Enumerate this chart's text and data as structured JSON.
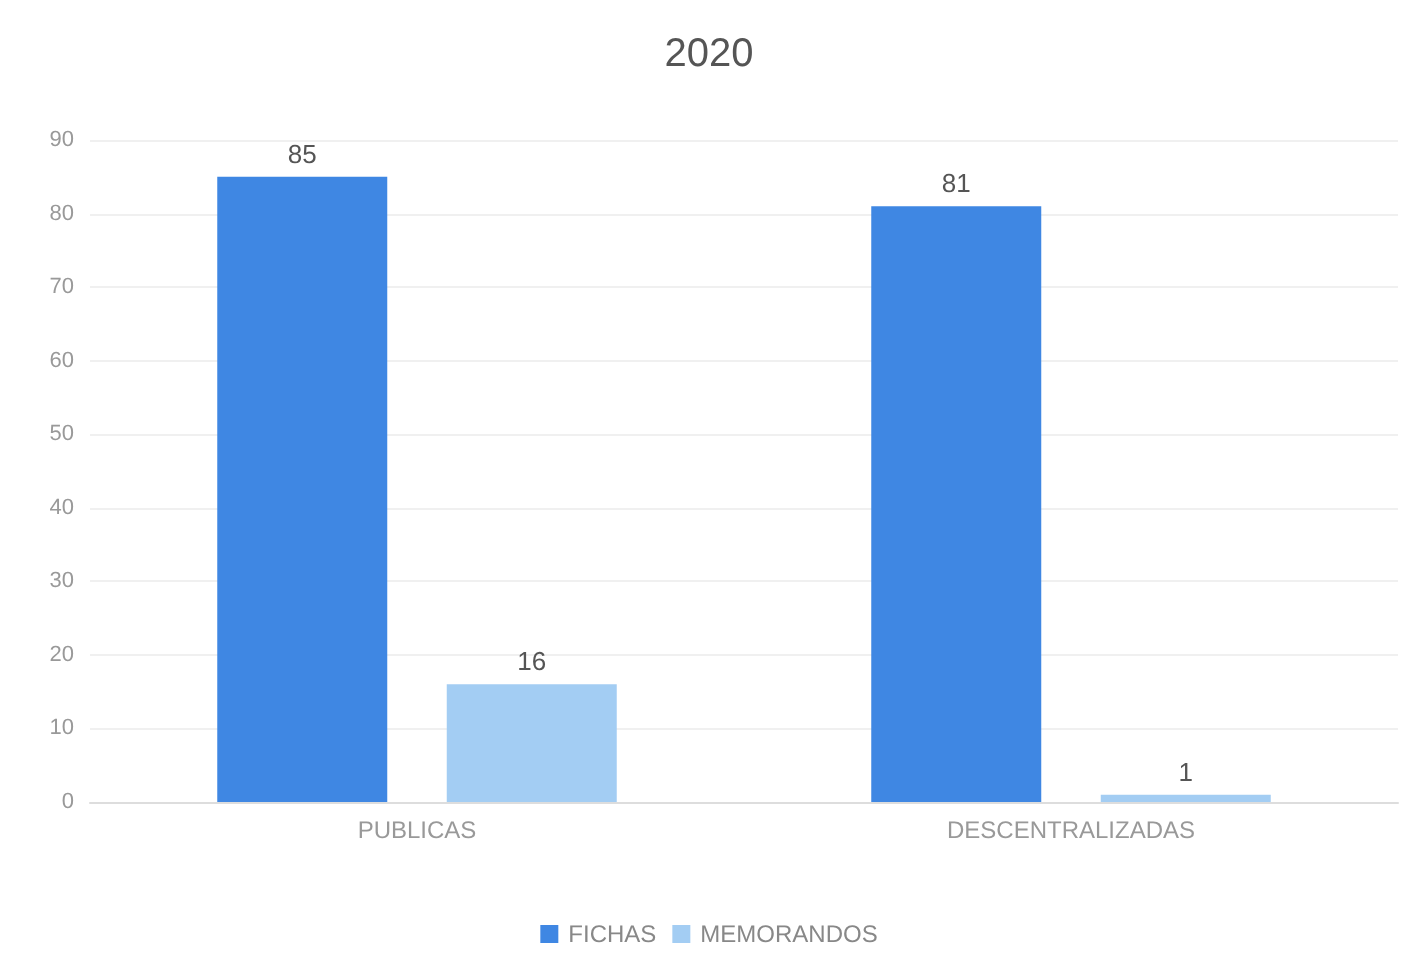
{
  "chart_data": {
    "type": "bar",
    "title": "2020",
    "categories": [
      "PUBLICAS",
      "DESCENTRALIZADAS"
    ],
    "series": [
      {
        "name": "FICHAS",
        "color": "#3f87e3",
        "values": [
          85,
          81
        ]
      },
      {
        "name": "MEMORANDOS",
        "color": "#a3cdf3",
        "values": [
          16,
          1
        ]
      }
    ],
    "ylim": [
      0,
      90
    ],
    "yticks": [
      0,
      10,
      20,
      30,
      40,
      50,
      60,
      70,
      80,
      90
    ],
    "data_labels": true,
    "legend": "bottom",
    "grid": "y"
  }
}
